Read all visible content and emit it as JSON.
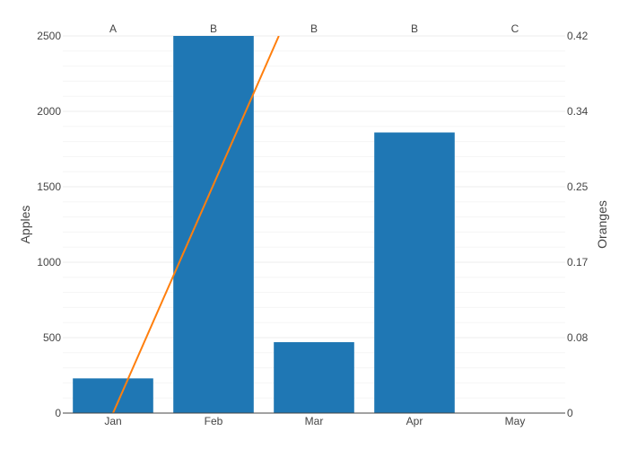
{
  "chart_data": {
    "type": "bar",
    "categories": [
      "Jan",
      "Feb",
      "Mar",
      "Apr",
      "May"
    ],
    "top_axis_labels": [
      "A",
      "B",
      "B",
      "B",
      "C"
    ],
    "series": [
      {
        "type": "bar",
        "axis": "left",
        "color": "#1f77b4",
        "values": [
          230,
          2500,
          470,
          1860,
          0
        ]
      },
      {
        "type": "line",
        "axis": "right",
        "color": "#ff7f0e",
        "points": [
          [
            0,
            0
          ],
          [
            1.65,
            0.42
          ]
        ]
      }
    ],
    "ylabel": "Apples",
    "y2label": "Oranges",
    "ylim": [
      0,
      2500
    ],
    "y2lim": [
      0,
      0.42
    ],
    "yticks": [
      0,
      500,
      1000,
      1500,
      2000,
      2500
    ],
    "y2ticks": [
      "0",
      "0.08",
      "0.17",
      "0.25",
      "0.34",
      "0.42"
    ],
    "grid": true
  }
}
